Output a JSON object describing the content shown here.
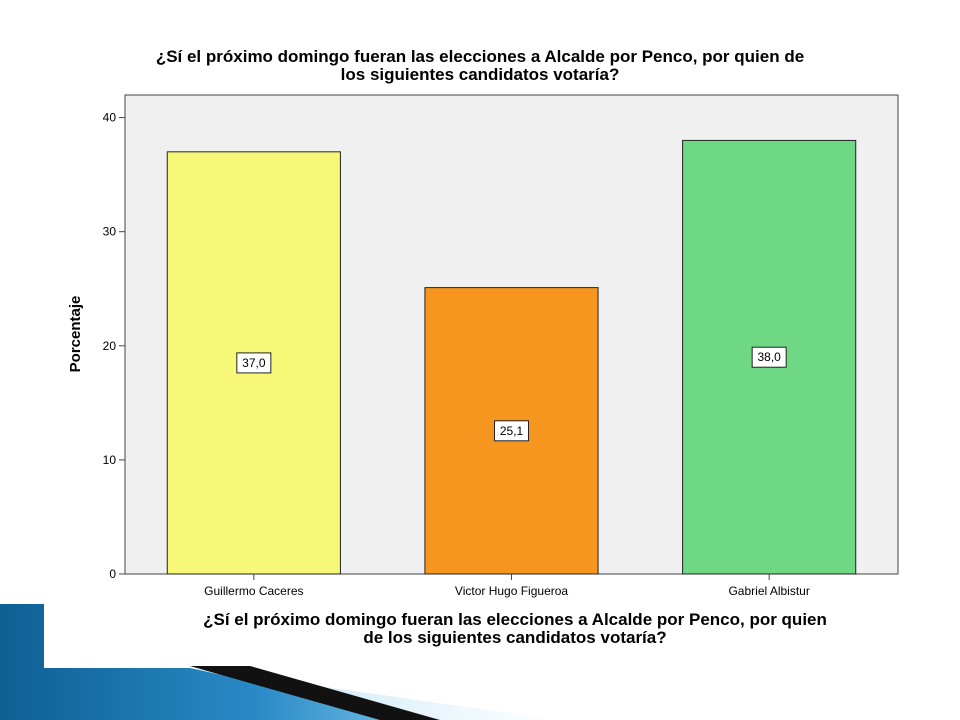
{
  "chart_data": {
    "type": "bar",
    "title": "¿Sí el próximo domingo fueran las elecciones a Alcalde por Penco, por quien de\nlos siguientes candidatos votaría?",
    "xlabel": "¿Sí el próximo domingo fueran las elecciones a Alcalde por Penco, por quien\nde los siguientes candidatos votaría?",
    "ylabel": "Porcentaje",
    "categories": [
      "Guillermo Caceres",
      "Victor Hugo Figueroa",
      "Gabriel Albistur"
    ],
    "values": [
      37.0,
      25.1,
      38.0
    ],
    "data_labels": [
      "37,0",
      "25,1",
      "38,0"
    ],
    "colors": [
      "#f8f878",
      "#f7961e",
      "#6ed884"
    ],
    "ylim": [
      0,
      42
    ],
    "yticks": [
      0,
      10,
      20,
      30,
      40
    ],
    "plot_background": "#f0f0f0",
    "grid": false,
    "legend": "none"
  }
}
